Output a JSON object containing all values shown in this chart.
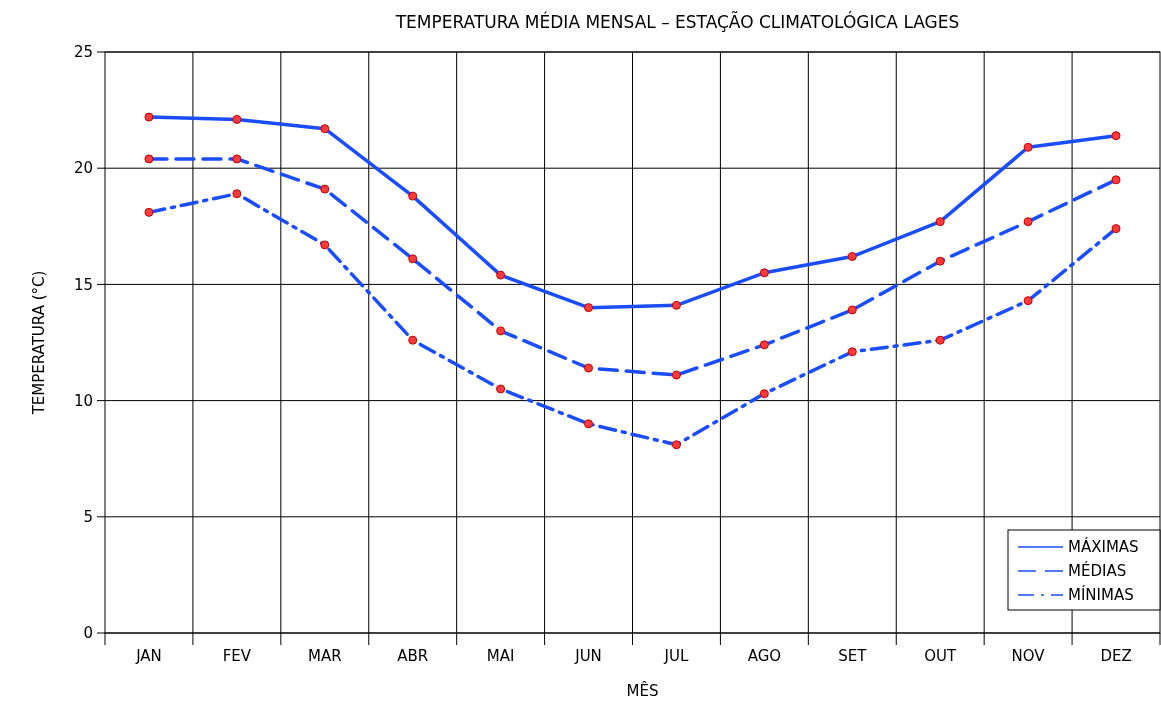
{
  "chart_data": {
    "type": "line",
    "title": "TEMPERATURA MÉDIA MENSAL – ESTAÇÃO CLIMATOLÓGICA LAGES",
    "xlabel": "MÊS",
    "ylabel": "TEMPERATURA (°C)",
    "categories": [
      "JAN",
      "FEV",
      "MAR",
      "ABR",
      "MAI",
      "JUN",
      "JUL",
      "AGO",
      "SET",
      "OUT",
      "NOV",
      "DEZ"
    ],
    "series": [
      {
        "name": "MÁXIMAS",
        "color": "#1a4dff",
        "line_style": "solid",
        "values": [
          22.2,
          22.1,
          21.7,
          18.8,
          15.4,
          14.0,
          14.1,
          15.5,
          16.2,
          17.7,
          20.9,
          21.4
        ]
      },
      {
        "name": "MÉDIAS",
        "color": "#1a4dff",
        "line_style": "dashed",
        "values": [
          20.4,
          20.4,
          19.1,
          16.1,
          13.0,
          11.4,
          11.1,
          12.4,
          13.9,
          16.0,
          17.7,
          19.5
        ]
      },
      {
        "name": "MÍNIMAS",
        "color": "#1a4dff",
        "line_style": "dashdot",
        "values": [
          18.1,
          18.9,
          16.7,
          12.6,
          10.5,
          9.0,
          8.1,
          10.3,
          12.1,
          12.6,
          14.3,
          17.4
        ]
      }
    ],
    "ylim": [
      0,
      25
    ],
    "yticks": [
      0,
      5,
      10,
      15,
      20,
      25
    ],
    "grid": true,
    "legend": "bottom right",
    "marker": "circle"
  }
}
